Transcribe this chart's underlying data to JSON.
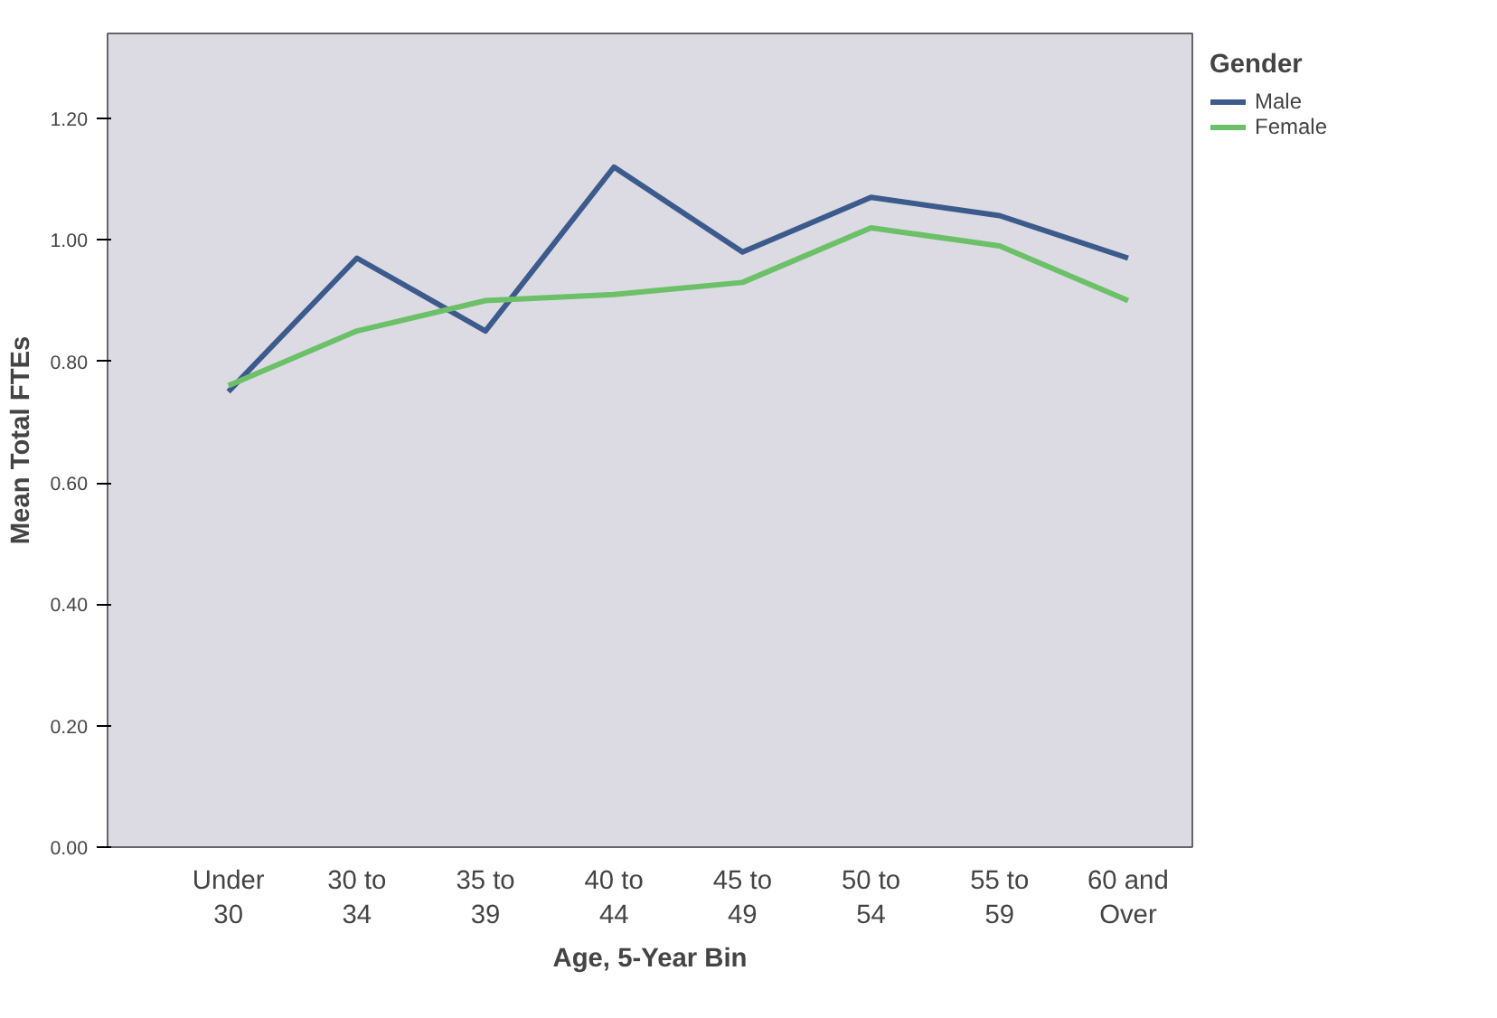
{
  "chart_data": {
    "type": "line",
    "xlabel": "Age, 5-Year Bin",
    "ylabel": "Mean Total FTEs",
    "legend_title": "Gender",
    "legend": "top right",
    "grid": false,
    "categories": [
      "Under\n30",
      "30 to\n34",
      "35 to\n39",
      "40 to\n44",
      "45 to\n49",
      "50 to\n54",
      "55 to\n59",
      "60 and\nOver"
    ],
    "ylim": [
      0,
      1.34
    ],
    "yticks": [
      {
        "value": 0,
        "label": "0.00"
      },
      {
        "value": 0.2,
        "label": "0.20"
      },
      {
        "value": 0.4,
        "label": "0.40"
      },
      {
        "value": 0.6,
        "label": "0.60"
      },
      {
        "value": 0.8,
        "label": "0.80"
      },
      {
        "value": 1.0,
        "label": "1.00"
      },
      {
        "value": 1.2,
        "label": "1.20"
      }
    ],
    "series": [
      {
        "name": "Male",
        "color": "#3c5a8c",
        "values": [
          0.75,
          0.97,
          0.85,
          1.12,
          0.98,
          1.07,
          1.04,
          0.97
        ]
      },
      {
        "name": "Female",
        "color": "#6cc068",
        "values": [
          0.76,
          0.85,
          0.9,
          0.91,
          0.93,
          1.02,
          0.99,
          0.9
        ]
      }
    ]
  }
}
